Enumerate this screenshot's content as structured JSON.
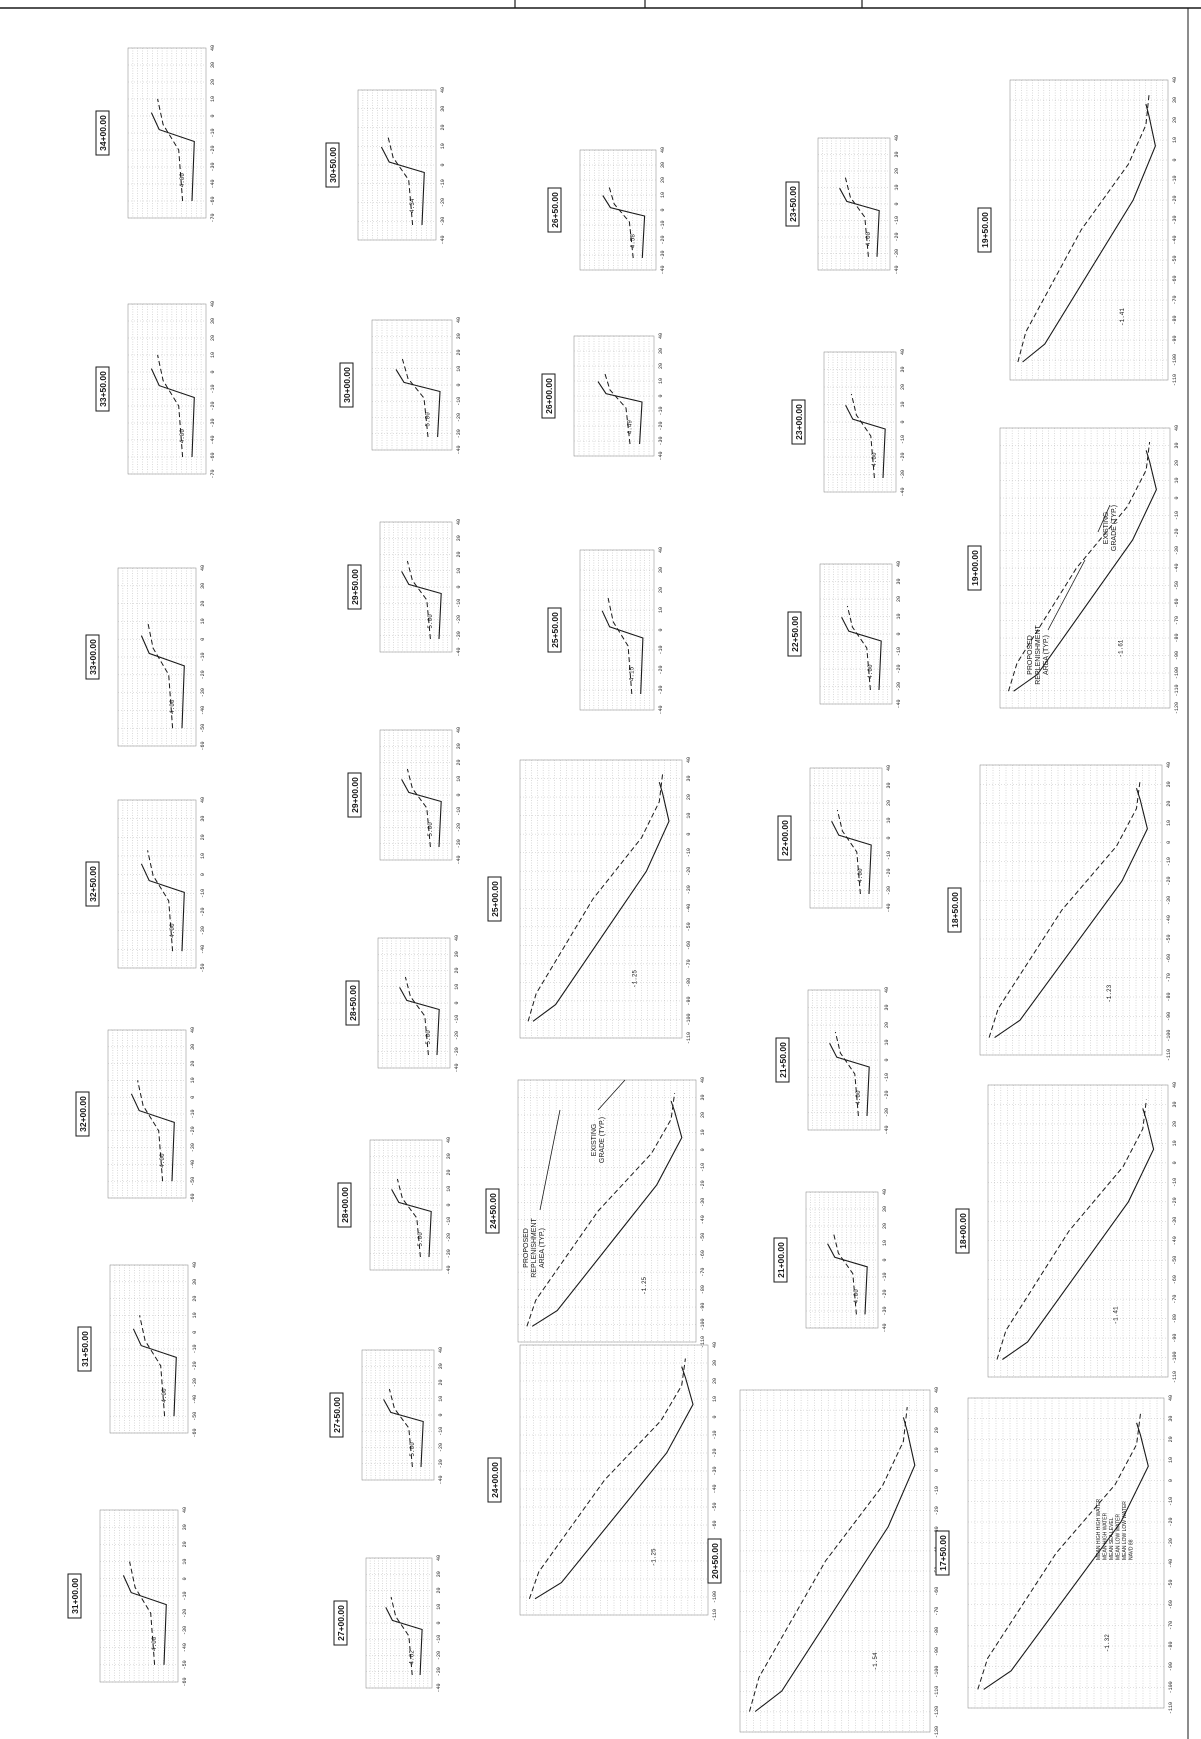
{
  "colors": {
    "ink": "#1a1a1a",
    "grid": "#9a9a9a",
    "paper": "#ffffff"
  },
  "annotations": {
    "proposed": [
      "PROPOSED",
      "REPLENISHMENT",
      "AREA (TYP.)"
    ],
    "existing": [
      "EXISTING",
      "GRADE (TYP.)"
    ],
    "legend": [
      "MEAN HIGH HIGH WATER",
      "MEAN HIGH WATER",
      "MEAN SEA LEVEL",
      "MEAN LOW WATER",
      "MEAN LOW LOW WATER",
      "NAVD 88"
    ]
  },
  "sections": [
    {
      "label": "34+00.00",
      "ticks": [
        "-70",
        "-60",
        "-40",
        "-30",
        "-20",
        "-10",
        "0",
        "10",
        "20",
        "30",
        "40"
      ],
      "elev_tick": "4.00"
    },
    {
      "label": "33+50.00",
      "ticks": [
        "-70",
        "-60",
        "-40",
        "-30",
        "-20",
        "-10",
        "0",
        "10",
        "20",
        "30",
        "40"
      ],
      "elev_tick": "4.00"
    },
    {
      "label": "33+00.00",
      "ticks": [
        "-60",
        "-50",
        "-40",
        "-30",
        "-20",
        "-10",
        "0",
        "10",
        "20",
        "30",
        "40"
      ],
      "elev_tick": "4.00"
    },
    {
      "label": "32+50.00",
      "ticks": [
        "-50",
        "-40",
        "-30",
        "-20",
        "-10",
        "0",
        "10",
        "20",
        "30",
        "40"
      ],
      "elev_tick": "4.00"
    },
    {
      "label": "32+00.00",
      "ticks": [
        "-60",
        "-50",
        "-40",
        "-30",
        "-20",
        "-10",
        "0",
        "10",
        "20",
        "30",
        "40"
      ],
      "elev_tick": "4.00"
    },
    {
      "label": "31+50.00",
      "ticks": [
        "-60",
        "-50",
        "-40",
        "-30",
        "-20",
        "-10",
        "0",
        "10",
        "20",
        "30",
        "40"
      ],
      "elev_tick": "4.00"
    },
    {
      "label": "31+00.00",
      "ticks": [
        "-60",
        "-50",
        "-40",
        "-30",
        "-20",
        "-10",
        "0",
        "10",
        "20",
        "30",
        "40"
      ],
      "elev_tick": "4.00"
    },
    {
      "label": "30+50.00",
      "ticks": [
        "-40",
        "-30",
        "-20",
        "-10",
        "0",
        "10",
        "20",
        "30",
        "40"
      ],
      "elev_tick": "4.34"
    },
    {
      "label": "30+00.00",
      "ticks": [
        "-40",
        "-30",
        "-20",
        "-10",
        "0",
        "10",
        "20",
        "30",
        "40"
      ],
      "elev_tick": "5.00"
    },
    {
      "label": "29+50.00",
      "ticks": [
        "-40",
        "-30",
        "-20",
        "-10",
        "0",
        "10",
        "20",
        "30",
        "40"
      ],
      "elev_tick": "5.00"
    },
    {
      "label": "29+00.00",
      "ticks": [
        "-40",
        "-30",
        "-20",
        "-10",
        "0",
        "10",
        "20",
        "30",
        "40"
      ],
      "elev_tick": "5.00"
    },
    {
      "label": "28+50.00",
      "ticks": [
        "-40",
        "-30",
        "-20",
        "-10",
        "0",
        "10",
        "20",
        "30",
        "40"
      ],
      "elev_tick": "5.00"
    },
    {
      "label": "28+00.00",
      "ticks": [
        "-40",
        "-30",
        "-20",
        "-10",
        "0",
        "10",
        "20",
        "30",
        "40"
      ],
      "elev_tick": "5.00"
    },
    {
      "label": "27+50.00",
      "ticks": [
        "-40",
        "-30",
        "-20",
        "-10",
        "0",
        "10",
        "20",
        "30",
        "40"
      ],
      "elev_tick": "5.00"
    },
    {
      "label": "27+00.00",
      "ticks": [
        "-40",
        "-30",
        "-20",
        "-10",
        "0",
        "10",
        "20",
        "30",
        "40"
      ],
      "elev_tick": "4.62"
    },
    {
      "label": "26+50.00",
      "ticks": [
        "-40",
        "-30",
        "-20",
        "-10",
        "0",
        "10",
        "20",
        "30",
        "40"
      ],
      "elev_tick": "4.58"
    },
    {
      "label": "26+00.00",
      "ticks": [
        "-40",
        "-30",
        "-20",
        "-10",
        "0",
        "10",
        "20",
        "30",
        "40"
      ],
      "elev_tick": "4.49"
    },
    {
      "label": "25+50.00",
      "ticks": [
        "-40",
        "-30",
        "-20",
        "-10",
        "0",
        "10",
        "20",
        "30",
        "40"
      ],
      "elev_tick": "4.15"
    },
    {
      "label": "25+00.00",
      "ticks": [
        "-110",
        "-100",
        "-90",
        "-80",
        "-70",
        "-60",
        "-50",
        "-40",
        "-30",
        "-20",
        "-10",
        "0",
        "10",
        "20",
        "30",
        "40"
      ],
      "elev_tick": "-1.25"
    },
    {
      "label": "24+50.00",
      "ticks": [
        "-110",
        "-100",
        "-90",
        "-80",
        "-70",
        "-60",
        "-50",
        "-40",
        "-30",
        "-20",
        "-10",
        "0",
        "10",
        "20",
        "30",
        "40"
      ],
      "elev_tick": "-1.25"
    },
    {
      "label": "24+00.00",
      "ticks": [
        "-110",
        "-100",
        "-90",
        "-80",
        "-70",
        "-60",
        "-50",
        "-40",
        "-30",
        "-20",
        "-10",
        "0",
        "10",
        "20",
        "30",
        "40"
      ],
      "elev_tick": "-1.25"
    },
    {
      "label": "23+50.00",
      "ticks": [
        "-40",
        "-30",
        "-20",
        "-10",
        "0",
        "10",
        "20",
        "30",
        "40"
      ],
      "elev_tick": "4.00"
    },
    {
      "label": "23+00.00",
      "ticks": [
        "-40",
        "-30",
        "-20",
        "-10",
        "0",
        "10",
        "20",
        "30",
        "40"
      ],
      "elev_tick": "4.00"
    },
    {
      "label": "22+50.00",
      "ticks": [
        "-40",
        "-30",
        "-20",
        "-10",
        "0",
        "10",
        "20",
        "30",
        "40"
      ],
      "elev_tick": "4.00"
    },
    {
      "label": "22+00.00",
      "ticks": [
        "-40",
        "-30",
        "-20",
        "-10",
        "0",
        "10",
        "20",
        "30",
        "40"
      ],
      "elev_tick": "4.00"
    },
    {
      "label": "21+50.00",
      "ticks": [
        "-40",
        "-30",
        "-20",
        "-10",
        "0",
        "10",
        "20",
        "30",
        "40"
      ],
      "elev_tick": "4.00"
    },
    {
      "label": "21+00.00",
      "ticks": [
        "-40",
        "-30",
        "-20",
        "-10",
        "0",
        "10",
        "20",
        "30",
        "40"
      ],
      "elev_tick": "4.00"
    },
    {
      "label": "20+50.00",
      "ticks": [
        "-130",
        "-120",
        "-110",
        "-100",
        "-90",
        "-80",
        "-70",
        "-60",
        "-50",
        "-40",
        "-30",
        "-20",
        "-10",
        "0",
        "10",
        "20",
        "30",
        "40"
      ],
      "elev_tick": "-1.54"
    },
    {
      "label": "19+50.00",
      "ticks": [
        "-110",
        "-100",
        "-90",
        "-80",
        "-70",
        "-60",
        "-50",
        "-40",
        "-30",
        "-20",
        "-10",
        "0",
        "10",
        "20",
        "30",
        "40"
      ],
      "elev_tick": "-1.41"
    },
    {
      "label": "19+00.00",
      "ticks": [
        "-120",
        "-110",
        "-100",
        "-90",
        "-80",
        "-70",
        "-60",
        "-50",
        "-40",
        "-30",
        "-20",
        "-10",
        "0",
        "10",
        "20",
        "30",
        "40"
      ],
      "elev_tick": "-1.61"
    },
    {
      "label": "18+50.00",
      "ticks": [
        "-110",
        "-100",
        "-90",
        "-80",
        "-70",
        "-60",
        "-50",
        "-40",
        "-30",
        "-20",
        "-10",
        "0",
        "10",
        "20",
        "30",
        "40"
      ],
      "elev_tick": "-1.23"
    },
    {
      "label": "18+00.00",
      "ticks": [
        "-110",
        "-100",
        "-90",
        "-80",
        "-70",
        "-60",
        "-50",
        "-40",
        "-30",
        "-20",
        "-10",
        "0",
        "10",
        "20",
        "30",
        "40"
      ],
      "elev_tick": "-1.41"
    },
    {
      "label": "17+50.00",
      "ticks": [
        "-110",
        "-100",
        "-90",
        "-80",
        "-70",
        "-60",
        "-50",
        "-40",
        "-30",
        "-20",
        "-10",
        "0",
        "10",
        "20",
        "30",
        "40"
      ],
      "elev_tick": "-1.32"
    }
  ]
}
